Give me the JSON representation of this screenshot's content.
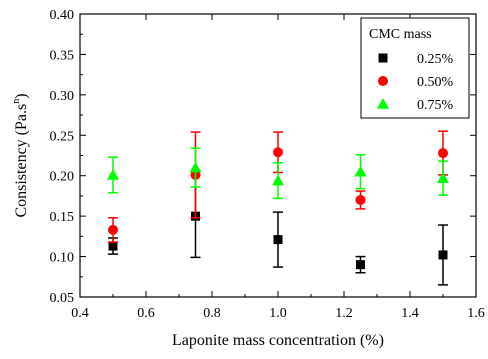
{
  "chart_data": {
    "type": "scatter",
    "title": "",
    "xlabel": "Laponite mass concentration (%)",
    "ylabel_main": "Consistency (Pa.s",
    "ylabel_sup": "n",
    "ylabel_close": ")",
    "xlim": [
      0.4,
      1.6
    ],
    "ylim": [
      0.05,
      0.4
    ],
    "xticks": [
      0.4,
      0.6,
      0.8,
      1.0,
      1.2,
      1.4,
      1.6
    ],
    "xtick_labels": [
      "0.4",
      "0.6",
      "0.8",
      "1.0",
      "1.2",
      "1.4",
      "1.6"
    ],
    "yticks": [
      0.05,
      0.1,
      0.15,
      0.2,
      0.25,
      0.3,
      0.35,
      0.4
    ],
    "ytick_labels": [
      "0.05",
      "0.10",
      "0.15",
      "0.20",
      "0.25",
      "0.30",
      "0.35",
      "0.40"
    ],
    "grid": false,
    "legend_position": "top-right",
    "legend_title": "CMC mass",
    "x": [
      0.5,
      0.75,
      1.0,
      1.25,
      1.5
    ],
    "series": [
      {
        "name": "0.25%",
        "marker": "square",
        "color": "#000000",
        "values": [
          0.113,
          0.15,
          0.121,
          0.09,
          0.102
        ],
        "error": [
          0.01,
          0.051,
          0.034,
          0.01,
          0.037
        ]
      },
      {
        "name": "0.50%",
        "marker": "circle",
        "color": "#ff0000",
        "values": [
          0.133,
          0.201,
          0.229,
          0.17,
          0.228
        ],
        "error": [
          0.015,
          0.053,
          0.025,
          0.011,
          0.027
        ]
      },
      {
        "name": "0.75%",
        "marker": "triangle",
        "color": "#00ff00",
        "values": [
          0.201,
          0.21,
          0.194,
          0.205,
          0.197
        ],
        "error": [
          0.022,
          0.024,
          0.022,
          0.021,
          0.021
        ]
      }
    ]
  }
}
